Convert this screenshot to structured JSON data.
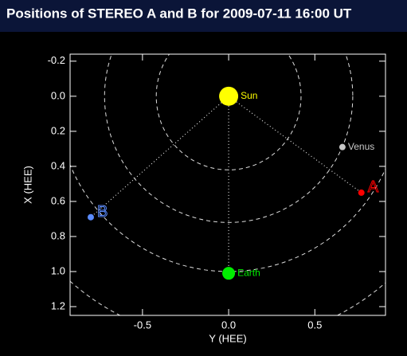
{
  "chart_data": {
    "type": "scatter",
    "title": "Positions of STEREO A and B for 2009-07-11 16:00 UT",
    "xlabel": "Y (HEE)",
    "ylabel": "X (HEE)",
    "xlim": [
      -0.92,
      0.91
    ],
    "ylim": [
      1.25,
      -0.24
    ],
    "y_inverted": true,
    "xticks": [
      -0.5,
      {
        "value": 0,
        "label": "0.0"
      },
      0.5
    ],
    "yticks": [
      -0.2,
      {
        "value": 0,
        "label": "0.0"
      },
      0.2,
      0.4,
      0.6,
      0.8,
      {
        "value": 1,
        "label": "1.0"
      },
      1.2
    ],
    "orbit_radii": [
      0.42,
      0.72,
      1.0,
      1.4
    ],
    "series": [
      {
        "name": "Sun",
        "color": "#ffff00",
        "size": 12,
        "x": [
          0
        ],
        "values": [
          0
        ]
      },
      {
        "name": "Earth",
        "color": "#00ee00",
        "size": 8,
        "x": [
          0
        ],
        "values": [
          1.01
        ],
        "line_to_sun": true
      },
      {
        "name": "Venus",
        "color": "#c8c8c8",
        "size": 4,
        "x": [
          0.66
        ],
        "values": [
          0.29
        ]
      },
      {
        "name": "A",
        "color": "#ff0000",
        "size": 4,
        "x": [
          0.77
        ],
        "values": [
          0.55
        ],
        "line_to_sun": true
      },
      {
        "name": "B",
        "color": "#5b8cff",
        "size": 4,
        "x": [
          -0.8
        ],
        "values": [
          0.69
        ],
        "line_to_sun": true
      }
    ]
  }
}
